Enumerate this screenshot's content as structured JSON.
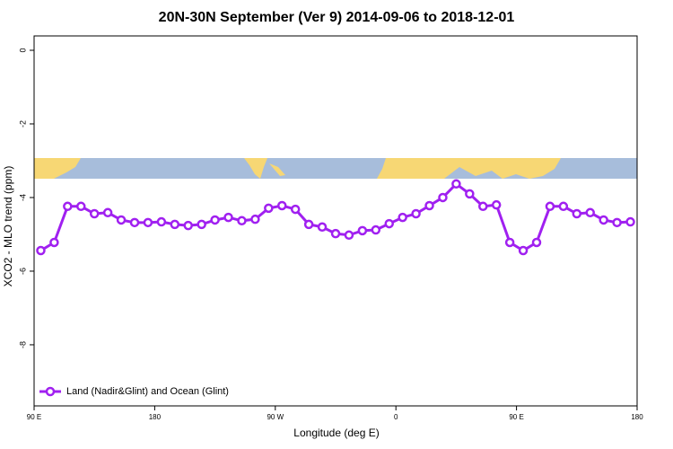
{
  "chart_data": {
    "type": "line",
    "title": "20N-30N September (Ver 9)   2014-09-06 to 2018-12-01",
    "xlabel": "Longitude (deg E)",
    "ylabel": "XCO2 - MLO trend (ppm)",
    "x": [
      95,
      105,
      115,
      125,
      135,
      145,
      155,
      165,
      175,
      185,
      195,
      205,
      215,
      225,
      235,
      245,
      255,
      265,
      275,
      285,
      295,
      305,
      315,
      325,
      335,
      345,
      355,
      365,
      375,
      385,
      395,
      405,
      415,
      425,
      435,
      445,
      455,
      465,
      475,
      485,
      495,
      505,
      515,
      525,
      535
    ],
    "series": [
      {
        "name": "Land (Nadir&Glint) and Ocean (Glint)",
        "color": "#a020f0",
        "values": [
          -5.44,
          -5.22,
          -4.24,
          -4.24,
          -4.44,
          -4.41,
          -4.61,
          -4.68,
          -4.68,
          -4.66,
          -4.73,
          -4.76,
          -4.73,
          -4.61,
          -4.54,
          -4.63,
          -4.59,
          -4.29,
          -4.22,
          -4.32,
          -4.73,
          -4.8,
          -4.98,
          -5.02,
          -4.9,
          -4.88,
          -4.71,
          -4.54,
          -4.44,
          -4.22,
          -4.0,
          -3.63,
          -3.9,
          -4.24,
          -4.2,
          -5.22,
          -5.44,
          -5.22,
          -4.24,
          -4.24,
          -4.44,
          -4.41,
          -4.61,
          -4.68,
          -4.66
        ]
      }
    ],
    "xlim": [
      90,
      540
    ],
    "xticks": [
      {
        "value": 90,
        "label": "90 E"
      },
      180,
      {
        "value": 270,
        "label": "90 W"
      },
      {
        "value": 360,
        "label": "0"
      },
      {
        "value": 450,
        "label": "90 E"
      },
      {
        "value": 540,
        "label": "180"
      }
    ],
    "ylim": [
      -9.66,
      0.39
    ],
    "yticks": [
      0,
      -2,
      -4,
      -6,
      -8
    ],
    "legend": "bottomleft"
  }
}
